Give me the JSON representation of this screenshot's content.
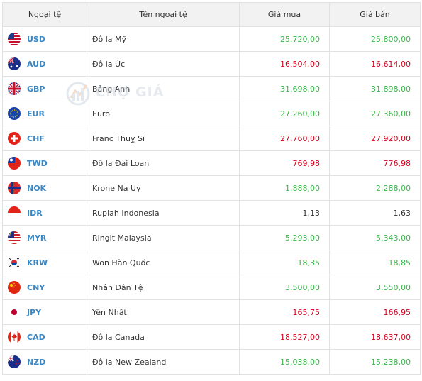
{
  "table": {
    "headers": {
      "code": "Ngoại tệ",
      "name": "Tên ngoại tệ",
      "buy": "Giá mua",
      "sell": "Giá bán"
    },
    "rows": [
      {
        "code": "USD",
        "name": "Đô la Mỹ",
        "buy": "25.720,00",
        "sell": "25.800,00",
        "trend": "up",
        "flag": "us-flag-icon"
      },
      {
        "code": "AUD",
        "name": "Đô la Úc",
        "buy": "16.504,00",
        "sell": "16.614,00",
        "trend": "down",
        "flag": "au-flag-icon"
      },
      {
        "code": "GBP",
        "name": "Bảng Anh",
        "buy": "31.698,00",
        "sell": "31.898,00",
        "trend": "up",
        "flag": "gb-flag-icon"
      },
      {
        "code": "EUR",
        "name": "Euro",
        "buy": "27.260,00",
        "sell": "27.360,00",
        "trend": "up",
        "flag": "eu-flag-icon"
      },
      {
        "code": "CHF",
        "name": "Franc Thuỵ Sĩ",
        "buy": "27.760,00",
        "sell": "27.920,00",
        "trend": "down",
        "flag": "ch-flag-icon"
      },
      {
        "code": "TWD",
        "name": "Đô la Đài Loan",
        "buy": "769,98",
        "sell": "776,98",
        "trend": "down",
        "flag": "tw-flag-icon"
      },
      {
        "code": "NOK",
        "name": "Krone Na Uy",
        "buy": "1.888,00",
        "sell": "2.288,00",
        "trend": "up",
        "flag": "no-flag-icon"
      },
      {
        "code": "IDR",
        "name": "Rupiah Indonesia",
        "buy": "1,13",
        "sell": "1,63",
        "trend": "flat",
        "flag": "id-flag-icon"
      },
      {
        "code": "MYR",
        "name": "Ringit Malaysia",
        "buy": "5.293,00",
        "sell": "5.343,00",
        "trend": "up",
        "flag": "my-flag-icon"
      },
      {
        "code": "KRW",
        "name": "Won Hàn Quốc",
        "buy": "18,35",
        "sell": "18,85",
        "trend": "up",
        "flag": "kr-flag-icon"
      },
      {
        "code": "CNY",
        "name": "Nhân Dân Tệ",
        "buy": "3.500,00",
        "sell": "3.550,00",
        "trend": "up",
        "flag": "cn-flag-icon"
      },
      {
        "code": "JPY",
        "name": "Yên Nhật",
        "buy": "165,75",
        "sell": "166,95",
        "trend": "down",
        "flag": "jp-flag-icon"
      },
      {
        "code": "CAD",
        "name": "Đô la Canada",
        "buy": "18.527,00",
        "sell": "18.637,00",
        "trend": "down",
        "flag": "ca-flag-icon"
      },
      {
        "code": "NZD",
        "name": "Đô la New Zealand",
        "buy": "15.038,00",
        "sell": "15.238,00",
        "trend": "up",
        "flag": "nz-flag-icon"
      }
    ]
  },
  "watermark": {
    "text": "CHỢ GIÁ",
    "icon": "chogia-logo-icon"
  },
  "colors": {
    "up": "#3ab54a",
    "down": "#d0021b",
    "flat": "#333333",
    "code": "#3a87c5",
    "header_bg": "#f2f2f2"
  }
}
